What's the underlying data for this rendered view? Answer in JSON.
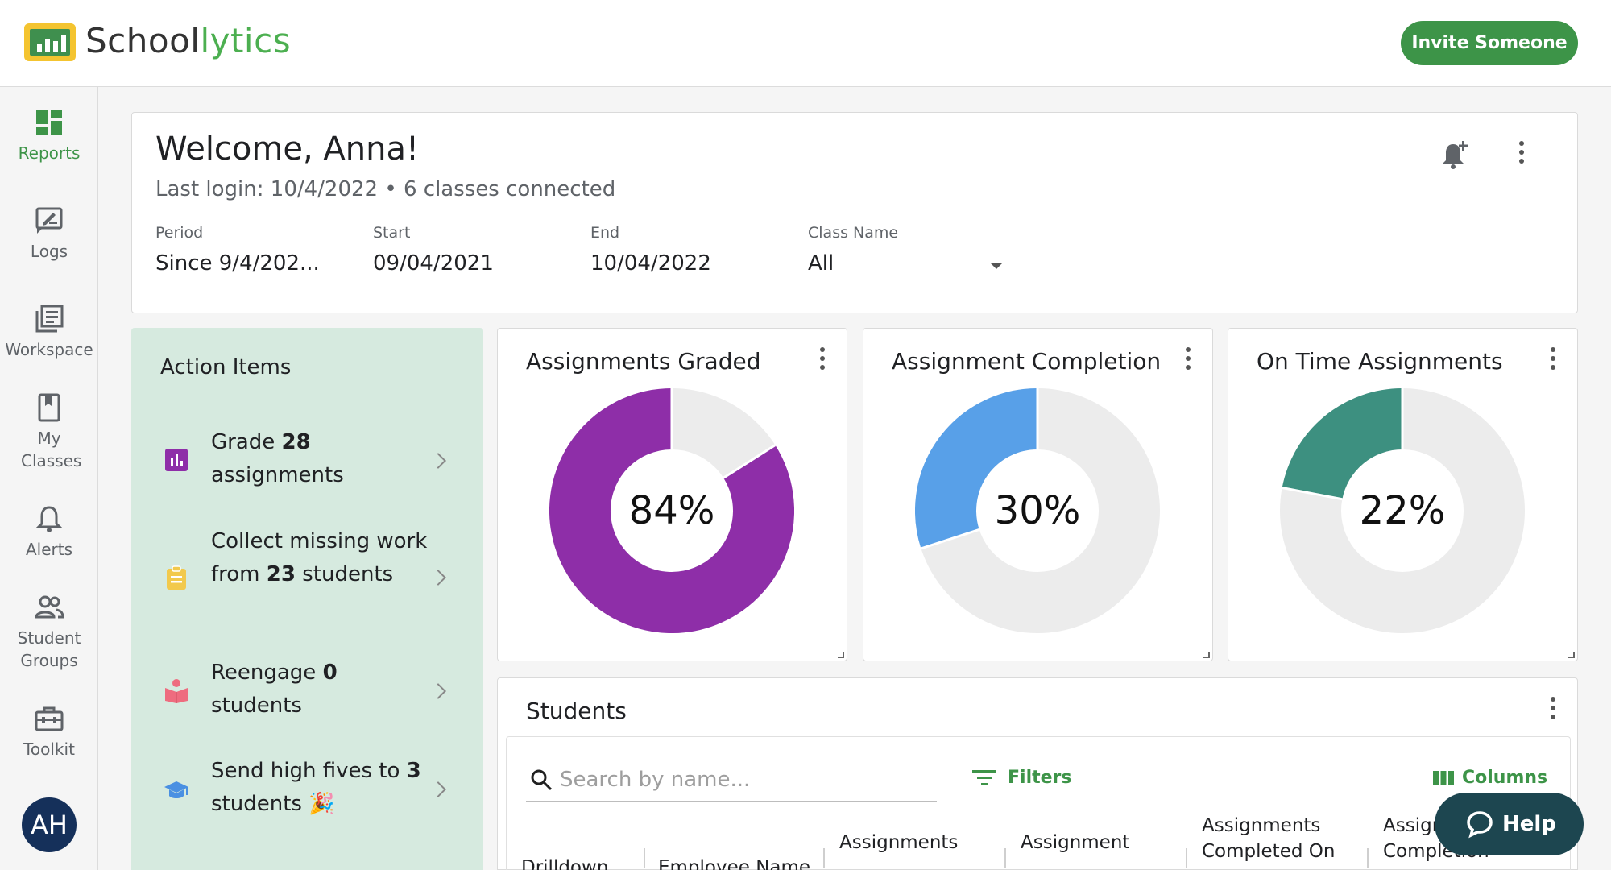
{
  "app": {
    "name_part1": "School",
    "name_part2": "lytics"
  },
  "header": {
    "invite_label": "Invite Someone"
  },
  "sidebar": {
    "items": [
      {
        "label": "Reports",
        "icon": "dashboard-icon",
        "active": true
      },
      {
        "label": "Logs",
        "icon": "edit-note-icon"
      },
      {
        "label": "Workspace",
        "icon": "library-books-icon"
      },
      {
        "label": "My Classes",
        "icon": "book-icon"
      },
      {
        "label": "Alerts",
        "icon": "bell-icon"
      },
      {
        "label": "Student Groups",
        "icon": "people-icon"
      },
      {
        "label": "Toolkit",
        "icon": "toolbox-icon"
      }
    ],
    "avatar_initials": "AH"
  },
  "welcome": {
    "title": "Welcome, Anna!",
    "subtitle": "Last login: 10/4/2022 • 6 classes connected",
    "filters": {
      "period": {
        "label": "Period",
        "value": "Since 9/4/202..."
      },
      "start": {
        "label": "Start",
        "value": "09/04/2021"
      },
      "end": {
        "label": "End",
        "value": "10/04/2022"
      },
      "class_name": {
        "label": "Class Name",
        "value": "All"
      }
    }
  },
  "action_items": {
    "title": "Action Items",
    "items": [
      {
        "pre": "Grade ",
        "bold": "28",
        "post": " assignments",
        "icon": "bar-chart-icon",
        "color": "#8e2ea8"
      },
      {
        "pre": "Collect missing work from ",
        "bold": "23",
        "post": " students",
        "icon": "clipboard-icon",
        "color": "#f2c94c"
      },
      {
        "pre": "Reengage ",
        "bold": "0",
        "post": " students",
        "icon": "reader-icon",
        "color": "#ee6c7f"
      },
      {
        "pre": "Send high fives to ",
        "bold": "3",
        "post": " students 🎉",
        "icon": "graduation-cap-icon",
        "color": "#4a90e2"
      }
    ]
  },
  "metrics": [
    {
      "title": "Assignments Graded",
      "value": 84,
      "label": "84%",
      "color": "#8e2ea8"
    },
    {
      "title": "Assignment Completion",
      "value": 30,
      "label": "30%",
      "color": "#58a0e8"
    },
    {
      "title": "On Time Assignments",
      "value": 22,
      "label": "22%",
      "color": "#3d9080"
    }
  ],
  "track_color": "#ececec",
  "students": {
    "title": "Students",
    "search_placeholder": "Search by name...",
    "filters_label": "Filters",
    "columns_label": "Columns",
    "headers": {
      "drilldown": "Drilldown",
      "employee_name": "Employee Name",
      "assignments": "Assignments",
      "assignment": "Assignment",
      "assignments_completed_on_1": "Assignments",
      "assignments_completed_on_2": "Completed On",
      "assign_completion_1": "Assign",
      "assign_completion_2": "Completion"
    }
  },
  "help": {
    "label": "Help"
  }
}
